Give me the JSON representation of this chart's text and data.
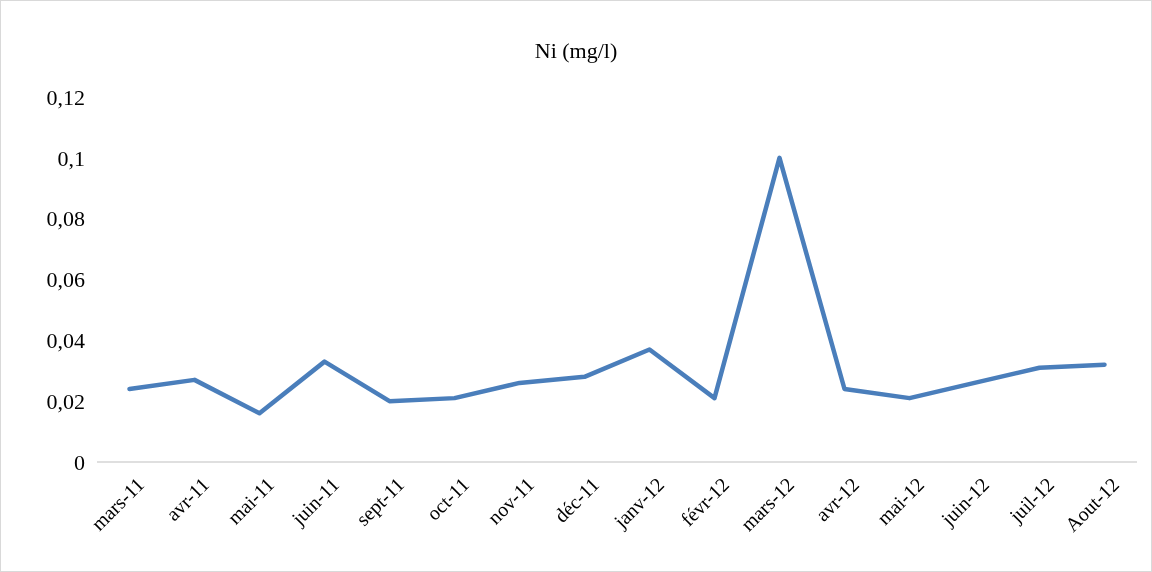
{
  "chart_data": {
    "type": "line",
    "title": "Ni (mg/l)",
    "categories": [
      "mars-11",
      "avr-11",
      "mai-11",
      "juin-11",
      "sept-11",
      "oct-11",
      "nov-11",
      "déc-11",
      "janv-12",
      "févr-12",
      "mars-12",
      "avr-12",
      "mai-12",
      "juin-12",
      "juil-12",
      "Aout-12"
    ],
    "series": [
      {
        "color": "#4a7ebb",
        "values": [
          0.024,
          0.027,
          0.016,
          0.033,
          0.02,
          0.021,
          0.026,
          0.028,
          0.037,
          0.021,
          0.1,
          0.024,
          0.021,
          0.026,
          0.031,
          0.032
        ]
      }
    ],
    "ylim": [
      0,
      0.12
    ],
    "yticks": [
      {
        "value": 0,
        "label": "0"
      },
      {
        "value": 0.02,
        "label": "0,02"
      },
      {
        "value": 0.04,
        "label": "0,04"
      },
      {
        "value": 0.06,
        "label": "0,06"
      },
      {
        "value": 0.08,
        "label": "0,08"
      },
      {
        "value": 0.1,
        "label": "0,1"
      },
      {
        "value": 0.12,
        "label": "0,12"
      }
    ],
    "grid": false,
    "marker": "none",
    "line_style": "solid"
  }
}
